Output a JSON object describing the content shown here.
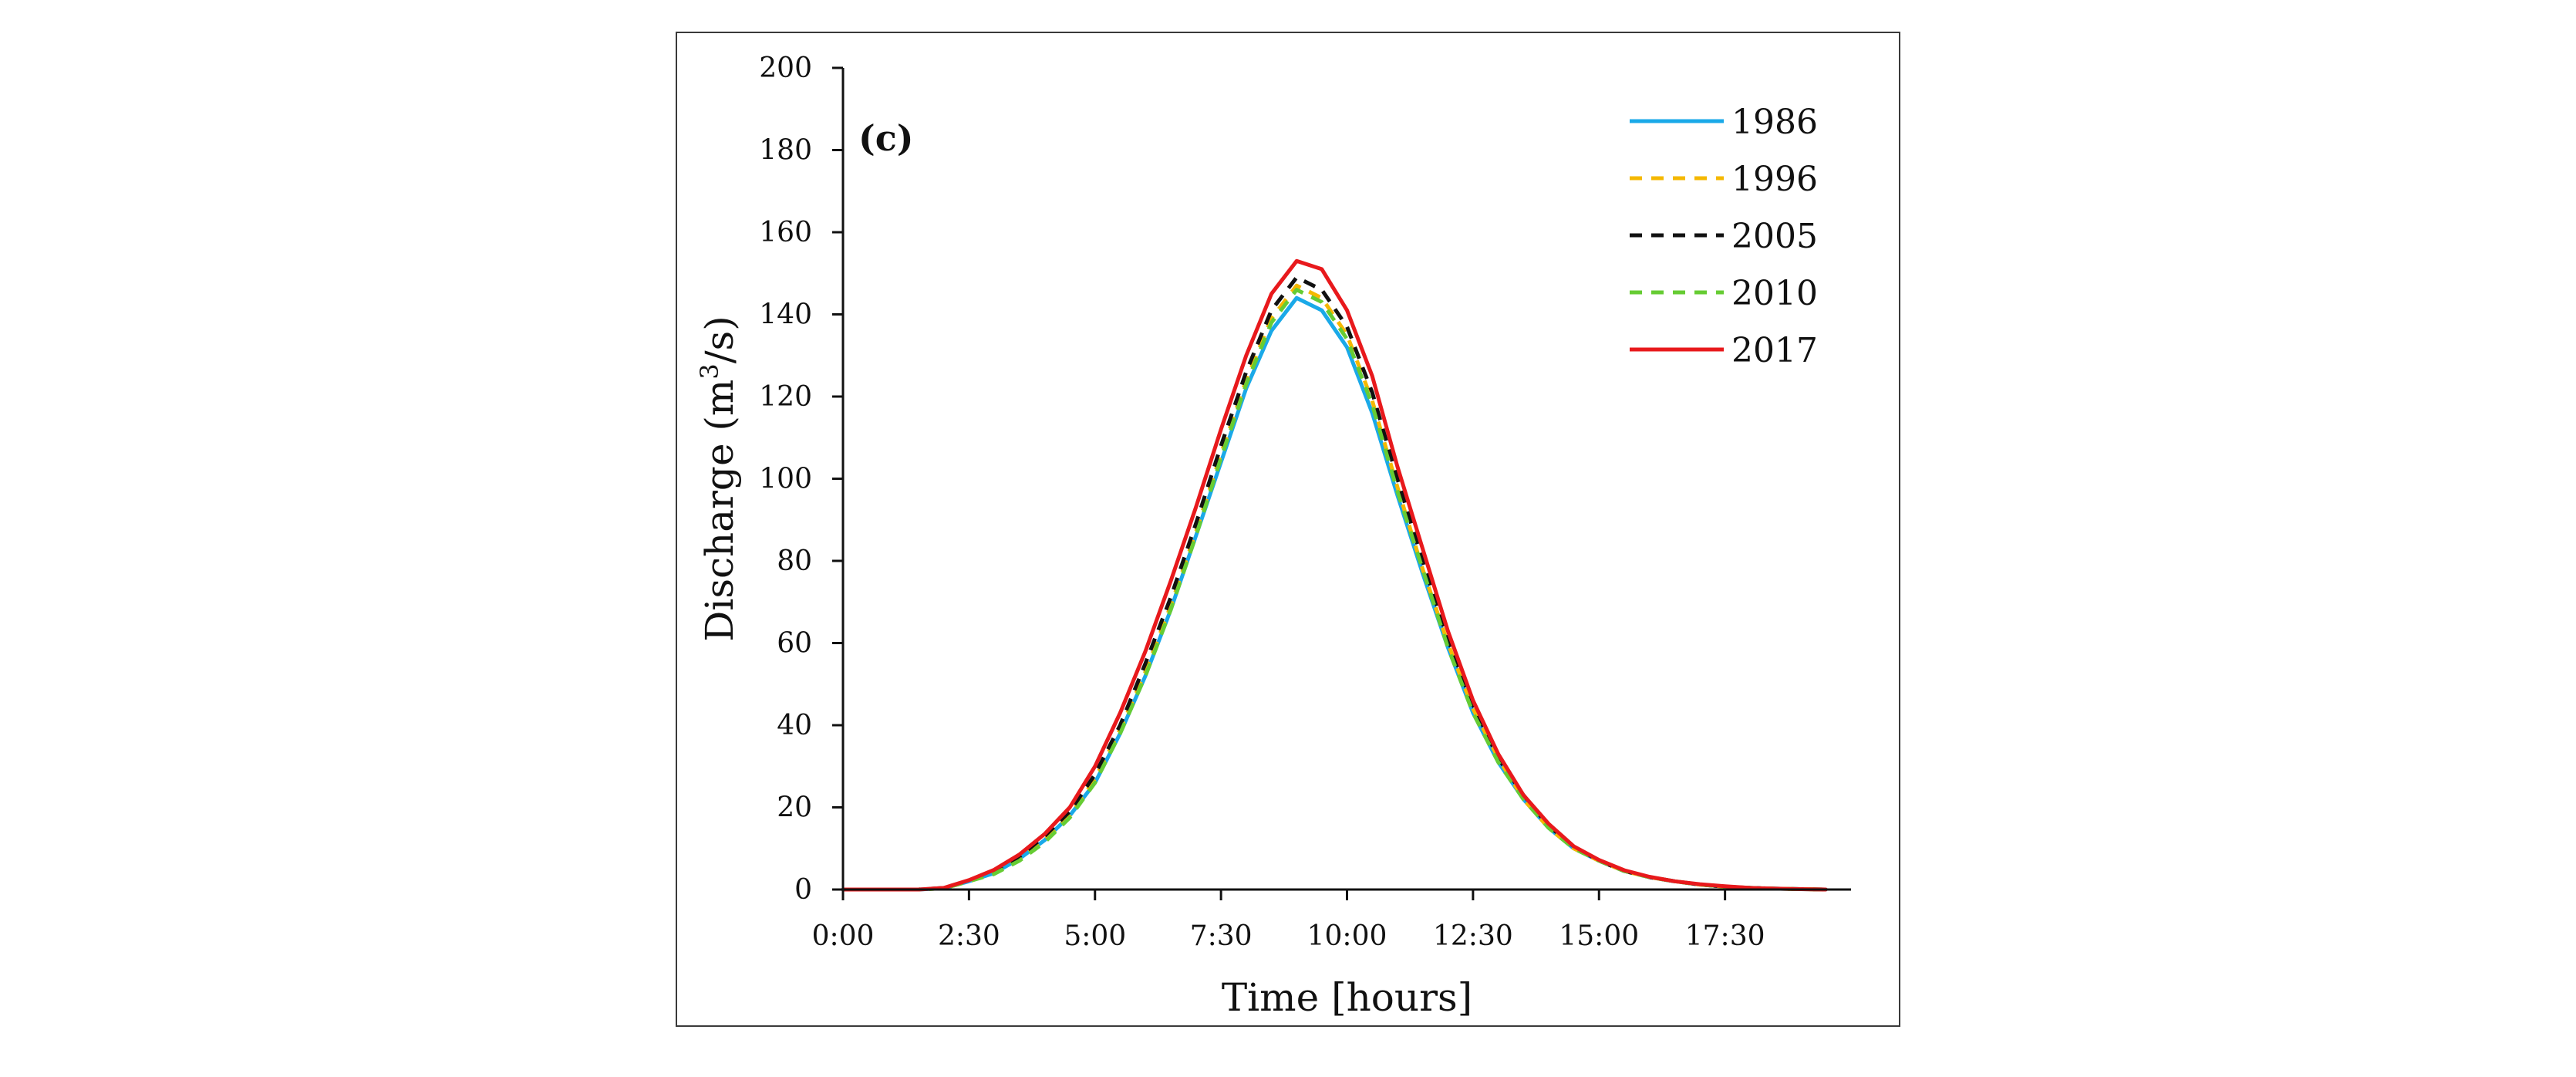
{
  "chart_data": {
    "type": "line",
    "panel_label": "(c)",
    "title": "",
    "xlabel": "Time [hours]",
    "ylabel_main": "Discharge (m",
    "ylabel_sup": "3",
    "ylabel_end": "/s)",
    "xlim": [
      0,
      20
    ],
    "ylim": [
      0,
      200
    ],
    "x_ticks": [
      0,
      2.5,
      5,
      7.5,
      10,
      12.5,
      15,
      17.5
    ],
    "x_tick_labels": [
      "0:00",
      "2:30",
      "5:00",
      "7:30",
      "10:00",
      "12:30",
      "15:00",
      "17:30"
    ],
    "y_ticks": [
      0,
      20,
      40,
      60,
      80,
      100,
      120,
      140,
      160,
      180,
      200
    ],
    "y_tick_labels": [
      "0",
      "20",
      "40",
      "60",
      "80",
      "100",
      "120",
      "140",
      "160",
      "180",
      "200"
    ],
    "grid": false,
    "legend_position": "top-right",
    "x": [
      0,
      0.5,
      1,
      1.5,
      2,
      2.5,
      3,
      3.5,
      4,
      4.5,
      5,
      5.5,
      6,
      6.5,
      7,
      7.5,
      8,
      8.5,
      9,
      9.5,
      10,
      10.5,
      11,
      11.5,
      12,
      12.5,
      13,
      13.5,
      14,
      14.5,
      15,
      15.5,
      16,
      16.5,
      17,
      17.5,
      18,
      18.5,
      19,
      19.5
    ],
    "series": [
      {
        "name": "1986",
        "color": "#1aa9e8",
        "dash": "solid",
        "values": [
          0,
          0,
          0,
          0,
          0.3,
          2,
          4,
          7.5,
          12,
          18,
          26,
          38,
          52,
          68,
          86,
          104,
          122,
          136,
          144,
          141,
          132,
          116,
          96,
          77,
          59,
          43,
          31,
          22,
          15,
          10,
          7,
          4.5,
          3,
          2,
          1.2,
          0.7,
          0.4,
          0.2,
          0.1,
          0
        ]
      },
      {
        "name": "1996",
        "color": "#f5b800",
        "dash": "dashed",
        "values": [
          0,
          0,
          0,
          0,
          0.3,
          2,
          4,
          7.5,
          12,
          18,
          27,
          39,
          53,
          69,
          87,
          106,
          124,
          139,
          147,
          144,
          135,
          119,
          98,
          78,
          60,
          44,
          32,
          22,
          15,
          10,
          7,
          4.5,
          3,
          2,
          1.2,
          0.7,
          0.4,
          0.2,
          0.1,
          0
        ]
      },
      {
        "name": "2005",
        "color": "#111111",
        "dash": "dashed",
        "values": [
          0,
          0,
          0,
          0,
          0.4,
          2.2,
          4.5,
          8,
          13,
          19,
          28,
          40,
          55,
          71,
          89,
          108,
          126,
          141,
          149,
          146,
          137,
          121,
          100,
          80,
          61,
          45,
          32,
          23,
          15.5,
          10.5,
          7,
          4.5,
          3,
          2,
          1.2,
          0.7,
          0.4,
          0.2,
          0.1,
          0
        ]
      },
      {
        "name": "2010",
        "color": "#66cc33",
        "dash": "dashed",
        "values": [
          0,
          0,
          0,
          0,
          0.3,
          2,
          3.8,
          7,
          11.5,
          17.5,
          26,
          38,
          52,
          68,
          86,
          105,
          123,
          138,
          146,
          143,
          134,
          118,
          97,
          78,
          59,
          43,
          31,
          22,
          15,
          10,
          7,
          4.5,
          3,
          2,
          1.2,
          0.7,
          0.4,
          0.2,
          0.1,
          0
        ]
      },
      {
        "name": "2017",
        "color": "#e8191c",
        "dash": "solid",
        "values": [
          0,
          0,
          0,
          0,
          0.4,
          2.3,
          4.8,
          8.5,
          13.5,
          20,
          30,
          43,
          58,
          75,
          93,
          112,
          130,
          145,
          153,
          151,
          141,
          125,
          103,
          83,
          63,
          46,
          33,
          23,
          16,
          10.5,
          7.2,
          4.7,
          3.1,
          2,
          1.3,
          0.8,
          0.4,
          0.2,
          0.1,
          0
        ]
      }
    ]
  }
}
